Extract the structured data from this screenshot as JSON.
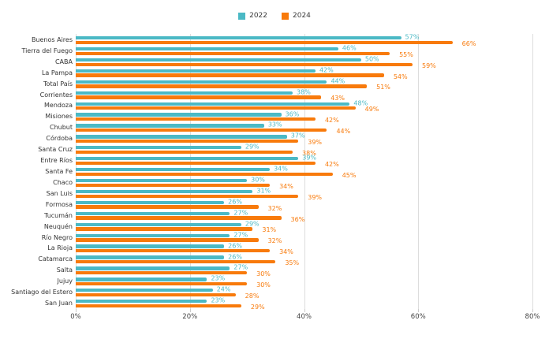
{
  "chart_data": {
    "type": "bar",
    "orientation": "horizontal",
    "title": "",
    "xlabel": "",
    "ylabel": "",
    "xlim": [
      0,
      80
    ],
    "value_suffix": "%",
    "grid": "vertical",
    "legend_position": "top-center",
    "categories": [
      "Buenos Aires",
      "Tierra del Fuego",
      "CABA",
      "La Pampa",
      "Total País",
      "Corrientes",
      "Mendoza",
      "Misiones",
      "Chubut",
      "Córdoba",
      "Santa Cruz",
      "Entre Ríos",
      "Santa Fe",
      "Chaco",
      "San Luis",
      "Formosa",
      "Tucumán",
      "Neuquén",
      "Río Negro",
      "La Rioja",
      "Catamarca",
      "Salta",
      "Jujuy",
      "Santiago del Estero",
      "San Juan"
    ],
    "series": [
      {
        "name": "2022",
        "color": "#4BB9C5",
        "values": [
          57,
          46,
          50,
          42,
          44,
          38,
          48,
          36,
          33,
          37,
          29,
          39,
          34,
          30,
          31,
          26,
          27,
          29,
          27,
          26,
          26,
          27,
          23,
          24,
          23
        ]
      },
      {
        "name": "2024",
        "color": "#F87A0B",
        "values": [
          66,
          55,
          59,
          54,
          51,
          43,
          49,
          42,
          44,
          39,
          38,
          42,
          45,
          34,
          39,
          32,
          36,
          31,
          32,
          34,
          35,
          30,
          30,
          28,
          29
        ]
      }
    ],
    "x_ticks": [
      {
        "value": 0,
        "label": "0%"
      },
      {
        "value": 20,
        "label": "20%"
      },
      {
        "value": 40,
        "label": "40%"
      },
      {
        "value": 60,
        "label": "60%"
      },
      {
        "value": 80,
        "label": "80%"
      }
    ],
    "colors": {
      "background": "#FFFFFF",
      "grid": "#DDDDDD",
      "tick_mark": "#CCCCCC",
      "tick_text": "#444444",
      "category_text": "#333333",
      "legend_text": "#3A3A3A"
    }
  }
}
